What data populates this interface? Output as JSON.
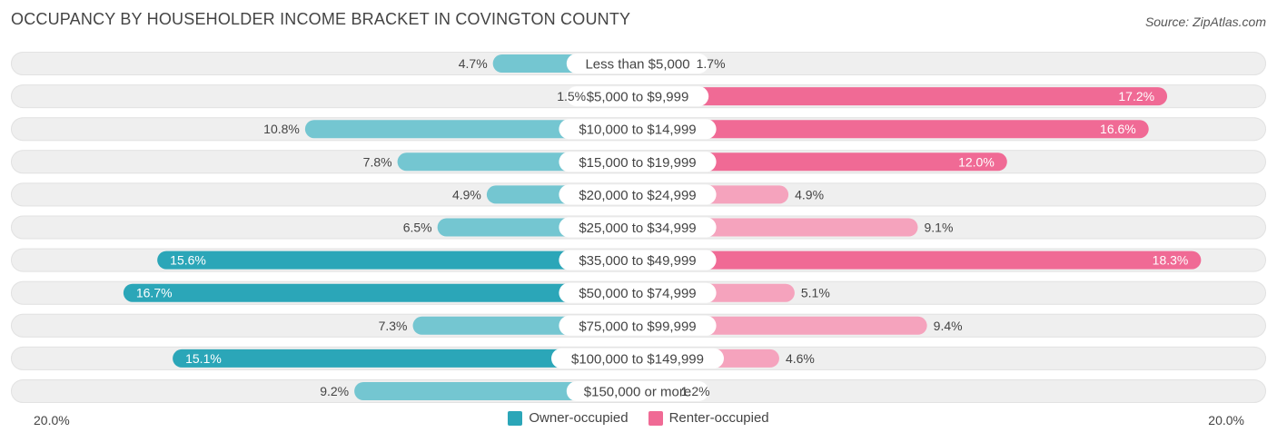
{
  "title": "OCCUPANCY BY HOUSEHOLDER INCOME BRACKET IN COVINGTON COUNTY",
  "source": "Source: ZipAtlas.com",
  "colors": {
    "owner_dark": "#2ba6b8",
    "owner_light": "#74c6d1",
    "renter_dark": "#f06a95",
    "renter_light": "#f5a3bd",
    "row_bg": "#efefef",
    "label_text": "#444444"
  },
  "legend": {
    "owner": "Owner-occupied",
    "renter": "Renter-occupied"
  },
  "axis": {
    "left_label": "20.0%",
    "right_label": "20.0%"
  },
  "chart_data": {
    "type": "bar",
    "orientation": "horizontal-diverging",
    "title": "OCCUPANCY BY HOUSEHOLDER INCOME BRACKET IN COVINGTON COUNTY",
    "categories": [
      "Less than $5,000",
      "$5,000 to $9,999",
      "$10,000 to $14,999",
      "$15,000 to $19,999",
      "$20,000 to $24,999",
      "$25,000 to $34,999",
      "$35,000 to $49,999",
      "$50,000 to $74,999",
      "$75,000 to $99,999",
      "$100,000 to $149,999",
      "$150,000 or more"
    ],
    "series": [
      {
        "name": "Owner-occupied",
        "values": [
          4.7,
          1.5,
          10.8,
          7.8,
          4.9,
          6.5,
          15.6,
          16.7,
          7.3,
          15.1,
          9.2
        ],
        "labels": [
          "4.7%",
          "1.5%",
          "10.8%",
          "7.8%",
          "4.9%",
          "6.5%",
          "15.6%",
          "16.7%",
          "7.3%",
          "15.1%",
          "9.2%"
        ]
      },
      {
        "name": "Renter-occupied",
        "values": [
          1.7,
          17.2,
          16.6,
          12.0,
          4.9,
          9.1,
          18.3,
          5.1,
          9.4,
          4.6,
          1.2
        ],
        "labels": [
          "1.7%",
          "17.2%",
          "16.6%",
          "12.0%",
          "4.9%",
          "9.1%",
          "18.3%",
          "5.1%",
          "9.4%",
          "4.6%",
          "1.2%"
        ]
      }
    ],
    "xlim": [
      -20,
      20
    ],
    "xlabel_left": "20.0%",
    "xlabel_right": "20.0%",
    "legend_position": "bottom-center"
  }
}
